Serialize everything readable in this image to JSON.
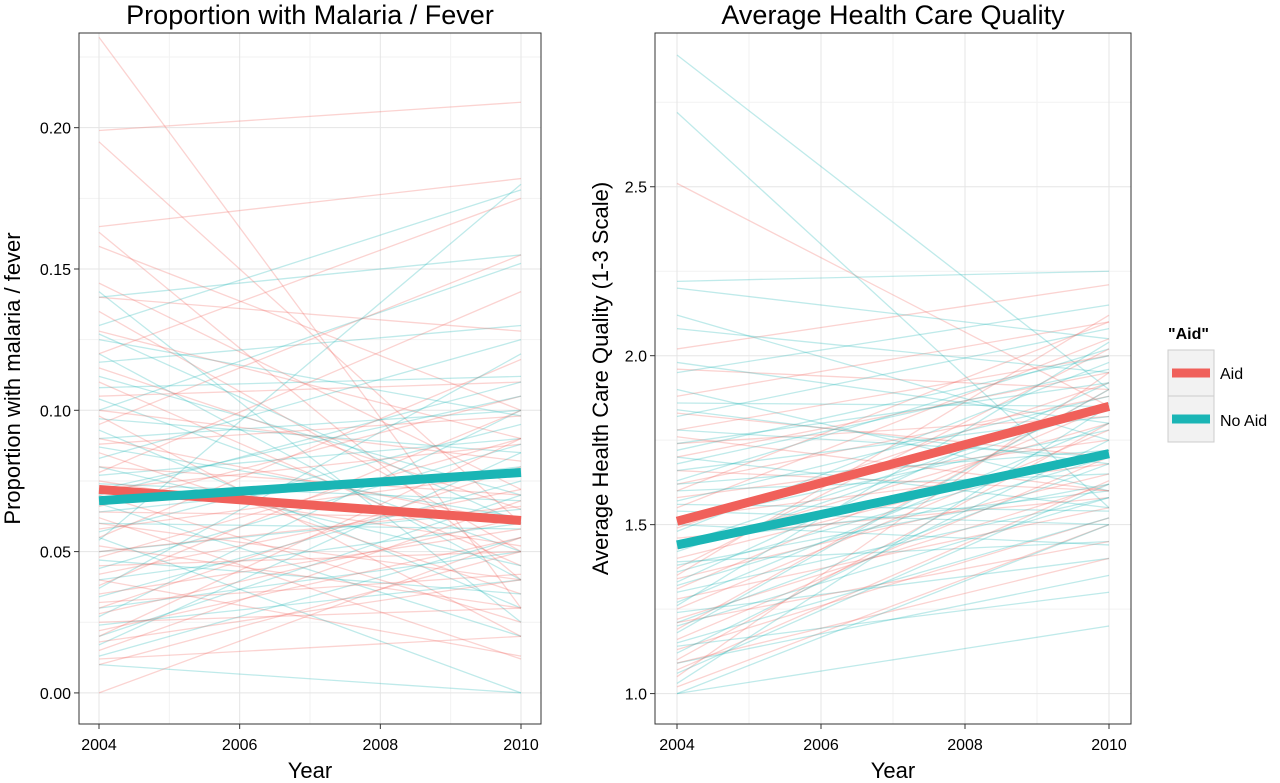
{
  "legend": {
    "title": "\"Aid\"",
    "entries": [
      {
        "label": "Aid",
        "color": "#F0605A"
      },
      {
        "label": "No Aid",
        "color": "#1AB5B5"
      }
    ]
  },
  "chart_data": [
    {
      "type": "line",
      "title": "Proportion with Malaria / Fever",
      "xlabel": "Year",
      "ylabel": "Proportion with malaria / fever",
      "xlim": [
        2004,
        2010
      ],
      "ylim": [
        0.0,
        0.23
      ],
      "xticks": [
        "2004",
        "2006",
        "2008",
        "2010"
      ],
      "yticks": [
        "0.00",
        "0.05",
        "0.10",
        "0.15",
        "0.20"
      ],
      "grid": true,
      "legend_placement": "right",
      "series": [
        {
          "name": "Aid",
          "color": "#F0605A",
          "x": [
            2004,
            2010
          ],
          "values": [
            0.072,
            0.061
          ]
        },
        {
          "name": "No Aid",
          "color": "#1AB5B5",
          "x": [
            2004,
            2010
          ],
          "values": [
            0.068,
            0.078
          ]
        }
      ],
      "individual_lines": {
        "Aid": [
          [
            0.232,
            0.03
          ],
          [
            0.199,
            0.209
          ],
          [
            0.195,
            0.06
          ],
          [
            0.165,
            0.182
          ],
          [
            0.163,
            0.04
          ],
          [
            0.158,
            0.1
          ],
          [
            0.145,
            0.072
          ],
          [
            0.14,
            0.128
          ],
          [
            0.135,
            0.05
          ],
          [
            0.128,
            0.09
          ],
          [
            0.12,
            0.175
          ],
          [
            0.115,
            0.065
          ],
          [
            0.11,
            0.045
          ],
          [
            0.105,
            0.11
          ],
          [
            0.1,
            0.082
          ],
          [
            0.098,
            0.02
          ],
          [
            0.095,
            0.155
          ],
          [
            0.09,
            0.06
          ],
          [
            0.088,
            0.098
          ],
          [
            0.085,
            0.035
          ],
          [
            0.08,
            0.07
          ],
          [
            0.078,
            0.142
          ],
          [
            0.075,
            0.052
          ],
          [
            0.072,
            0.088
          ],
          [
            0.07,
            0.025
          ],
          [
            0.066,
            0.105
          ],
          [
            0.064,
            0.062
          ],
          [
            0.06,
            0.04
          ],
          [
            0.058,
            0.078
          ],
          [
            0.055,
            0.118
          ],
          [
            0.052,
            0.03
          ],
          [
            0.05,
            0.066
          ],
          [
            0.048,
            0.09
          ],
          [
            0.045,
            0.05
          ],
          [
            0.042,
            0.072
          ],
          [
            0.04,
            0.013
          ],
          [
            0.038,
            0.1
          ],
          [
            0.035,
            0.058
          ],
          [
            0.032,
            0.042
          ],
          [
            0.03,
            0.08
          ],
          [
            0.028,
            0.062
          ],
          [
            0.025,
            0.03
          ],
          [
            0.022,
            0.055
          ],
          [
            0.02,
            0.09
          ],
          [
            0.018,
            0.04
          ],
          [
            0.015,
            0.068
          ],
          [
            0.012,
            0.02
          ],
          [
            0.01,
            0.05
          ],
          [
            0.0,
            0.055
          ],
          [
            0.062,
            0.012
          ]
        ],
        "No Aid": [
          [
            0.142,
            0.025
          ],
          [
            0.14,
            0.155
          ],
          [
            0.13,
            0.178
          ],
          [
            0.127,
            0.06
          ],
          [
            0.125,
            0.098
          ],
          [
            0.12,
            0.04
          ],
          [
            0.117,
            0.13
          ],
          [
            0.112,
            0.07
          ],
          [
            0.108,
            0.112
          ],
          [
            0.104,
            0.05
          ],
          [
            0.1,
            0.152
          ],
          [
            0.097,
            0.085
          ],
          [
            0.093,
            0.03
          ],
          [
            0.09,
            0.1
          ],
          [
            0.087,
            0.062
          ],
          [
            0.083,
            0.125
          ],
          [
            0.08,
            0.045
          ],
          [
            0.077,
            0.09
          ],
          [
            0.074,
            0.068
          ],
          [
            0.07,
            0.11
          ],
          [
            0.067,
            0.02
          ],
          [
            0.064,
            0.08
          ],
          [
            0.06,
            0.058
          ],
          [
            0.057,
            0.095
          ],
          [
            0.054,
            0.18
          ],
          [
            0.05,
            0.065
          ],
          [
            0.047,
            0.035
          ],
          [
            0.044,
            0.088
          ],
          [
            0.04,
            0.06
          ],
          [
            0.037,
            0.12
          ],
          [
            0.034,
            0.075
          ],
          [
            0.03,
            0.05
          ],
          [
            0.027,
            0.1
          ],
          [
            0.024,
            0.04
          ],
          [
            0.02,
            0.07
          ],
          [
            0.017,
            0.085
          ],
          [
            0.013,
            0.055
          ],
          [
            0.01,
            0.0
          ],
          [
            0.055,
            0.0
          ],
          [
            0.072,
            0.105
          ]
        ]
      }
    },
    {
      "type": "line",
      "title": "Average Health Care Quality",
      "xlabel": "Year",
      "ylabel": "Average Health Care Quality (1-3 Scale)",
      "xlim": [
        2004,
        2010
      ],
      "ylim": [
        1.0,
        2.9
      ],
      "xticks": [
        "2004",
        "2006",
        "2008",
        "2010"
      ],
      "yticks": [
        "1.0",
        "1.5",
        "2.0",
        "2.5"
      ],
      "grid": true,
      "legend_placement": "right",
      "series": [
        {
          "name": "Aid",
          "color": "#F0605A",
          "x": [
            2004,
            2010
          ],
          "values": [
            1.51,
            1.85
          ]
        },
        {
          "name": "No Aid",
          "color": "#1AB5B5",
          "x": [
            2004,
            2010
          ],
          "values": [
            1.44,
            1.71
          ]
        }
      ],
      "individual_lines": {
        "Aid": [
          [
            2.51,
            1.85
          ],
          [
            2.02,
            2.21
          ],
          [
            1.96,
            1.9
          ],
          [
            1.88,
            2.1
          ],
          [
            1.83,
            1.7
          ],
          [
            1.78,
            2.0
          ],
          [
            1.74,
            1.82
          ],
          [
            1.7,
            1.95
          ],
          [
            1.66,
            1.6
          ],
          [
            1.62,
            1.88
          ],
          [
            1.58,
            1.75
          ],
          [
            1.55,
            2.05
          ],
          [
            1.52,
            1.68
          ],
          [
            1.49,
            1.92
          ],
          [
            1.46,
            1.58
          ],
          [
            1.43,
            1.8
          ],
          [
            1.4,
            1.72
          ],
          [
            1.37,
            2.02
          ],
          [
            1.34,
            1.65
          ],
          [
            1.31,
            1.85
          ],
          [
            1.28,
            1.55
          ],
          [
            1.25,
            1.78
          ],
          [
            1.22,
            1.62
          ],
          [
            1.19,
            1.9
          ],
          [
            1.16,
            1.7
          ],
          [
            1.13,
            1.52
          ],
          [
            1.1,
            1.8
          ],
          [
            1.07,
            1.63
          ],
          [
            1.05,
            1.95
          ],
          [
            1.02,
            1.5
          ],
          [
            1.6,
            2.1
          ],
          [
            1.35,
            2.12
          ],
          [
            1.21,
            1.45
          ],
          [
            1.09,
            1.4
          ],
          [
            1.76,
            1.6
          ]
        ],
        "No Aid": [
          [
            2.89,
            1.9
          ],
          [
            2.72,
            1.55
          ],
          [
            2.22,
            2.25
          ],
          [
            2.2,
            2.05
          ],
          [
            2.12,
            1.75
          ],
          [
            2.08,
            1.95
          ],
          [
            1.95,
            2.15
          ],
          [
            1.9,
            1.6
          ],
          [
            1.86,
            1.85
          ],
          [
            1.82,
            2.08
          ],
          [
            1.78,
            1.7
          ],
          [
            1.74,
            1.92
          ],
          [
            1.7,
            1.55
          ],
          [
            1.66,
            1.82
          ],
          [
            1.63,
            2.02
          ],
          [
            1.6,
            1.65
          ],
          [
            1.57,
            1.88
          ],
          [
            1.54,
            1.5
          ],
          [
            1.51,
            1.78
          ],
          [
            1.48,
            1.98
          ],
          [
            1.45,
            1.6
          ],
          [
            1.42,
            1.85
          ],
          [
            1.39,
            1.45
          ],
          [
            1.36,
            1.72
          ],
          [
            1.33,
            1.92
          ],
          [
            1.3,
            1.58
          ],
          [
            1.27,
            1.8
          ],
          [
            1.24,
            1.4
          ],
          [
            1.21,
            1.68
          ],
          [
            1.18,
            1.9
          ],
          [
            1.15,
            1.52
          ],
          [
            1.12,
            1.75
          ],
          [
            1.09,
            1.35
          ],
          [
            1.06,
            1.62
          ],
          [
            1.03,
            1.85
          ],
          [
            1.0,
            1.2
          ],
          [
            1.0,
            1.5
          ],
          [
            1.14,
            1.3
          ],
          [
            1.26,
            2.04
          ],
          [
            1.38,
            1.62
          ],
          [
            1.5,
            1.44
          ],
          [
            1.62,
            1.72
          ],
          [
            1.72,
            2.0
          ],
          [
            1.84,
            1.68
          ],
          [
            1.98,
            1.8
          ],
          [
            1.2,
            1.58
          ],
          [
            1.32,
            1.7
          ],
          [
            1.44,
            1.86
          ],
          [
            1.56,
            1.54
          ],
          [
            1.68,
            1.96
          ]
        ]
      }
    }
  ]
}
